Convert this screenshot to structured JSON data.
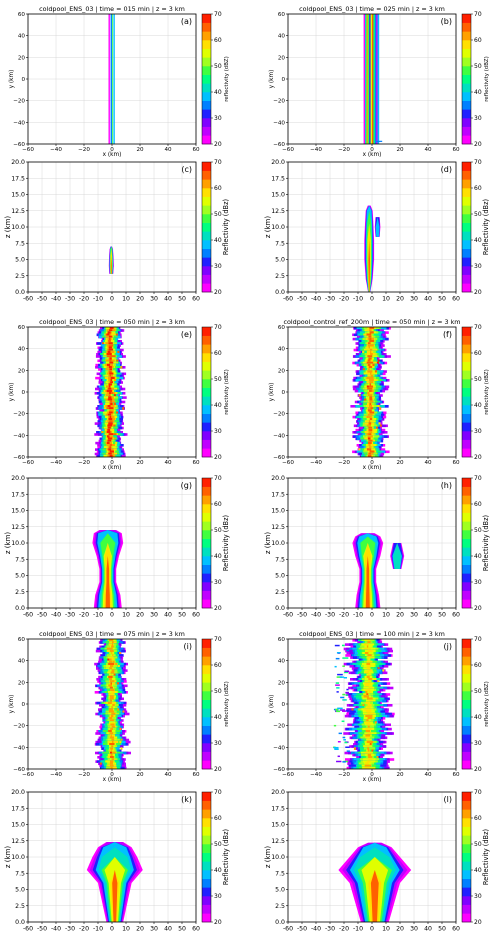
{
  "colorbar": {
    "ticks": [
      "20",
      "30",
      "40",
      "50",
      "60",
      "70"
    ],
    "colors": [
      "#ff00ff",
      "#c000ff",
      "#8000ff",
      "#2020ff",
      "#0080ff",
      "#00c0ff",
      "#00e0c0",
      "#00ff80",
      "#40ff40",
      "#a0ff20",
      "#e0ff00",
      "#ffe000",
      "#ffa000",
      "#ff6000",
      "#ff2000"
    ]
  },
  "chart_data": [
    {
      "type": "heatmap",
      "panel_label": "(a)",
      "title": "coldpool_ENS_03 | time = 015 min | z =  3 km",
      "xlabel": "x (km)",
      "ylabel": "y (km)",
      "cbar_label": "reflectivity (dBZ)",
      "xlim": [
        -60,
        60
      ],
      "ylim": [
        -60,
        60
      ],
      "xticks": [
        "−60",
        "−40",
        "−20",
        "0",
        "20",
        "40",
        "60"
      ],
      "yticks": [
        "−60",
        "−40",
        "−20",
        "0",
        "20",
        "40",
        "60"
      ],
      "clim": [
        20,
        70
      ]
    },
    {
      "type": "heatmap",
      "panel_label": "(b)",
      "title": "coldpool_ENS_03 | time = 025 min | z =  3 km",
      "xlabel": "x (km)",
      "ylabel": "y (km)",
      "cbar_label": "reflectivity (dBZ)",
      "xlim": [
        -60,
        60
      ],
      "ylim": [
        -60,
        60
      ],
      "xticks": [
        "−60",
        "−40",
        "−20",
        "0",
        "20",
        "40",
        "60"
      ],
      "yticks": [
        "−60",
        "−40",
        "−20",
        "0",
        "20",
        "40",
        "60"
      ],
      "clim": [
        20,
        70
      ]
    },
    {
      "type": "heatmap",
      "panel_label": "(c)",
      "title": "",
      "xlabel": "",
      "ylabel": "z (km)",
      "cbar_label": "Reflectivity (dBz)",
      "xlim": [
        -60,
        60
      ],
      "ylim": [
        0,
        20
      ],
      "xticks": [
        "-60",
        "-50",
        "-40",
        "-30",
        "-20",
        "-10",
        "0",
        "10",
        "20",
        "30",
        "40",
        "50",
        "60"
      ],
      "yticks": [
        "0.0",
        "2.5",
        "5.0",
        "7.5",
        "10.0",
        "12.5",
        "15.0",
        "17.5",
        "20.0"
      ],
      "clim": [
        20,
        70
      ]
    },
    {
      "type": "heatmap",
      "panel_label": "(d)",
      "title": "",
      "xlabel": "",
      "ylabel": "z (km)",
      "cbar_label": "Reflectivity (dBz)",
      "xlim": [
        -60,
        60
      ],
      "ylim": [
        0,
        20
      ],
      "xticks": [
        "-60",
        "-50",
        "-40",
        "-30",
        "-20",
        "-10",
        "0",
        "10",
        "20",
        "30",
        "40",
        "50",
        "60"
      ],
      "yticks": [
        "0.0",
        "2.5",
        "5.0",
        "7.5",
        "10.0",
        "12.5",
        "15.0",
        "17.5",
        "20.0"
      ],
      "clim": [
        20,
        70
      ]
    },
    {
      "type": "heatmap",
      "panel_label": "(e)",
      "title": "coldpool_ENS_03 | time = 050 min | z =  3 km",
      "xlabel": "x (km)",
      "ylabel": "y (km)",
      "cbar_label": "reflectivity (dBZ)",
      "xlim": [
        -60,
        60
      ],
      "ylim": [
        -60,
        60
      ],
      "xticks": [
        "−60",
        "−40",
        "−20",
        "0",
        "20",
        "40",
        "60"
      ],
      "yticks": [
        "−60",
        "−40",
        "−20",
        "0",
        "20",
        "40",
        "60"
      ],
      "clim": [
        20,
        70
      ]
    },
    {
      "type": "heatmap",
      "panel_label": "(f)",
      "title": "coldpool_control_ref_200m | time = 050 min | z =  3 km",
      "xlabel": "x (km)",
      "ylabel": "y (km)",
      "cbar_label": "reflectivity (dBZ)",
      "xlim": [
        -60,
        60
      ],
      "ylim": [
        -60,
        60
      ],
      "xticks": [
        "−60",
        "−40",
        "−20",
        "0",
        "20",
        "40",
        "60"
      ],
      "yticks": [
        "−60",
        "−40",
        "−20",
        "0",
        "20",
        "40",
        "60"
      ],
      "clim": [
        20,
        70
      ]
    },
    {
      "type": "heatmap",
      "panel_label": "(g)",
      "title": "",
      "xlabel": "",
      "ylabel": "z (km)",
      "cbar_label": "Reflectivity (dBz)",
      "xlim": [
        -60,
        60
      ],
      "ylim": [
        0,
        20
      ],
      "xticks": [
        "-60",
        "-50",
        "-40",
        "-30",
        "-20",
        "-10",
        "0",
        "10",
        "20",
        "30",
        "40",
        "50",
        "60"
      ],
      "yticks": [
        "0.0",
        "2.5",
        "5.0",
        "7.5",
        "10.0",
        "12.5",
        "15.0",
        "17.5",
        "20.0"
      ],
      "clim": [
        20,
        70
      ]
    },
    {
      "type": "heatmap",
      "panel_label": "(h)",
      "title": "",
      "xlabel": "",
      "ylabel": "z (km)",
      "cbar_label": "Reflectivity (dBz)",
      "xlim": [
        -60,
        60
      ],
      "ylim": [
        0,
        20
      ],
      "xticks": [
        "-60",
        "-50",
        "-40",
        "-30",
        "-20",
        "-10",
        "0",
        "10",
        "20",
        "30",
        "40",
        "50",
        "60"
      ],
      "yticks": [
        "0.0",
        "2.5",
        "5.0",
        "7.5",
        "10.0",
        "12.5",
        "15.0",
        "17.5",
        "20.0"
      ],
      "clim": [
        20,
        70
      ]
    },
    {
      "type": "heatmap",
      "panel_label": "(i)",
      "title": "coldpool_ENS_03 | time = 075 min | z =  3 km",
      "xlabel": "x (km)",
      "ylabel": "y (km)",
      "cbar_label": "reflectivity (dBZ)",
      "xlim": [
        -60,
        60
      ],
      "ylim": [
        -60,
        60
      ],
      "xticks": [
        "−60",
        "−40",
        "−20",
        "0",
        "20",
        "40",
        "60"
      ],
      "yticks": [
        "−60",
        "−40",
        "−20",
        "0",
        "20",
        "40",
        "60"
      ],
      "clim": [
        20,
        70
      ]
    },
    {
      "type": "heatmap",
      "panel_label": "(j)",
      "title": "coldpool_ENS_03 | time = 100 min | z =  3 km",
      "xlabel": "x (km)",
      "ylabel": "y (km)",
      "cbar_label": "reflectivity (dBZ)",
      "xlim": [
        -60,
        60
      ],
      "ylim": [
        -60,
        60
      ],
      "xticks": [
        "−60",
        "−40",
        "−20",
        "0",
        "20",
        "40",
        "60"
      ],
      "yticks": [
        "−60",
        "−40",
        "−20",
        "0",
        "20",
        "40",
        "60"
      ],
      "clim": [
        20,
        70
      ]
    },
    {
      "type": "heatmap",
      "panel_label": "(k)",
      "title": "",
      "xlabel": "",
      "ylabel": "z (km)",
      "cbar_label": "Reflectivity (dBz)",
      "xlim": [
        -60,
        60
      ],
      "ylim": [
        0,
        20
      ],
      "xticks": [
        "-60",
        "-50",
        "-40",
        "-30",
        "-20",
        "-10",
        "0",
        "10",
        "20",
        "30",
        "40",
        "50",
        "60"
      ],
      "yticks": [
        "0.0",
        "2.5",
        "5.0",
        "7.5",
        "10.0",
        "12.5",
        "15.0",
        "17.5",
        "20.0"
      ],
      "clim": [
        20,
        70
      ]
    },
    {
      "type": "heatmap",
      "panel_label": "(l)",
      "title": "",
      "xlabel": "",
      "ylabel": "z (km)",
      "cbar_label": "Reflectivity (dBz)",
      "xlim": [
        -60,
        60
      ],
      "ylim": [
        0,
        20
      ],
      "xticks": [
        "-60",
        "-50",
        "-40",
        "-30",
        "-20",
        "-10",
        "0",
        "10",
        "20",
        "30",
        "40",
        "50",
        "60"
      ],
      "yticks": [
        "0.0",
        "2.5",
        "5.0",
        "7.5",
        "10.0",
        "12.5",
        "15.0",
        "17.5",
        "20.0"
      ],
      "clim": [
        20,
        70
      ]
    }
  ]
}
